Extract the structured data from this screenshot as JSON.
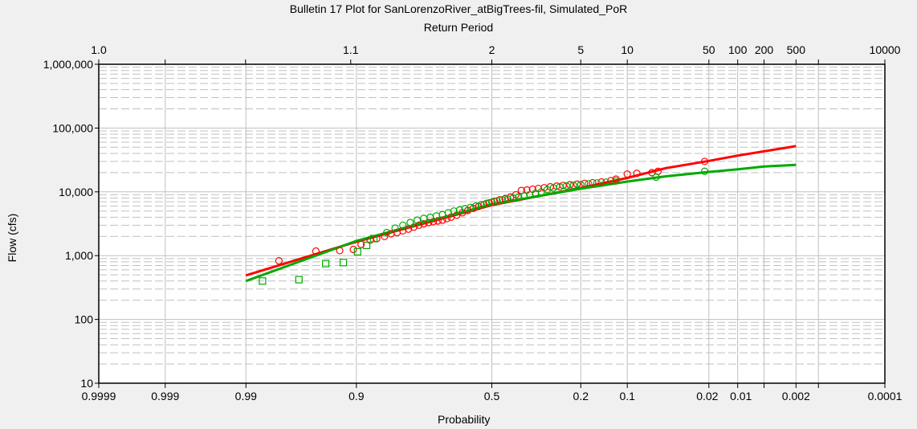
{
  "chart_data": {
    "type": "scatter",
    "title": "Bulletin 17 Plot for SanLorenzoRiver_atBigTrees-fil, Simulated_PoR",
    "top_axis_title": "Return Period",
    "xlabel": "Probability",
    "ylabel": "Flow (cfs)",
    "x_scale": "probability (normal)",
    "y_scale": "log",
    "ylim": [
      10,
      1000000
    ],
    "xlim": [
      0.9999,
      0.0001
    ],
    "y_ticks": [
      "1,000,000",
      "100,000",
      "10,000",
      "1,000",
      "100",
      "10"
    ],
    "x_ticks": [
      "0.9999",
      "0.999",
      "0.99",
      "0.9",
      "0.5",
      "0.2",
      "0.1",
      "0.02",
      "0.01",
      "0.002",
      "0.0001"
    ],
    "top_ticks": [
      "1.0",
      "1.1",
      "2",
      "5",
      "10",
      "50",
      "100",
      "200",
      "500",
      "10000"
    ],
    "grid": true,
    "series": [
      {
        "name": "Computed curve (red)",
        "color": "#ff0000",
        "kind": "line",
        "points": [
          [
            0.99,
            490
          ],
          [
            0.9,
            1650
          ],
          [
            0.5,
            6200
          ],
          [
            0.2,
            11500
          ],
          [
            0.1,
            16500
          ],
          [
            0.05,
            23500
          ],
          [
            0.02,
            30500
          ],
          [
            0.01,
            37000
          ],
          [
            0.002,
            52000
          ]
        ]
      },
      {
        "name": "Computed curve (green)",
        "color": "#00aa00",
        "kind": "line",
        "points": [
          [
            0.99,
            400
          ],
          [
            0.9,
            1700
          ],
          [
            0.5,
            6400
          ],
          [
            0.2,
            11200
          ],
          [
            0.1,
            14500
          ],
          [
            0.05,
            17500
          ],
          [
            0.02,
            20500
          ],
          [
            0.01,
            22500
          ],
          [
            0.005,
            25000
          ],
          [
            0.002,
            26500
          ]
        ]
      },
      {
        "name": "Observed (red circles)",
        "color": "#ff0000",
        "kind": "circle",
        "points": [
          [
            0.978,
            830
          ],
          [
            0.952,
            1180
          ],
          [
            0.925,
            1200
          ],
          [
            0.905,
            1250
          ],
          [
            0.892,
            1500
          ],
          [
            0.875,
            1750
          ],
          [
            0.862,
            1850
          ],
          [
            0.845,
            2000
          ],
          [
            0.83,
            2200
          ],
          [
            0.815,
            2300
          ],
          [
            0.8,
            2450
          ],
          [
            0.785,
            2600
          ],
          [
            0.77,
            2800
          ],
          [
            0.755,
            3000
          ],
          [
            0.74,
            3150
          ],
          [
            0.725,
            3300
          ],
          [
            0.71,
            3400
          ],
          [
            0.695,
            3500
          ],
          [
            0.68,
            3600
          ],
          [
            0.665,
            3800
          ],
          [
            0.65,
            4000
          ],
          [
            0.63,
            4300
          ],
          [
            0.61,
            4700
          ],
          [
            0.59,
            5100
          ],
          [
            0.57,
            5500
          ],
          [
            0.55,
            5900
          ],
          [
            0.53,
            6300
          ],
          [
            0.51,
            6700
          ],
          [
            0.49,
            7100
          ],
          [
            0.47,
            7500
          ],
          [
            0.45,
            7800
          ],
          [
            0.43,
            8300
          ],
          [
            0.41,
            9000
          ],
          [
            0.39,
            10500
          ],
          [
            0.37,
            10700
          ],
          [
            0.35,
            11000
          ],
          [
            0.33,
            11300
          ],
          [
            0.31,
            11600
          ],
          [
            0.29,
            12000
          ],
          [
            0.27,
            12300
          ],
          [
            0.25,
            12600
          ],
          [
            0.23,
            12900
          ],
          [
            0.21,
            13200
          ],
          [
            0.19,
            13600
          ],
          [
            0.17,
            13900
          ],
          [
            0.15,
            14300
          ],
          [
            0.13,
            15000
          ],
          [
            0.12,
            15800
          ],
          [
            0.1,
            19000
          ],
          [
            0.085,
            19500
          ],
          [
            0.065,
            20000
          ],
          [
            0.058,
            21000
          ],
          [
            0.022,
            30000
          ]
        ]
      },
      {
        "name": "Observed (green circles / squares)",
        "color": "#00aa00",
        "kind": "circle",
        "points": [
          [
            0.985,
            400
          ],
          [
            0.966,
            420
          ],
          [
            0.942,
            750
          ],
          [
            0.92,
            780
          ],
          [
            0.898,
            1150
          ],
          [
            0.882,
            1450
          ],
          [
            0.868,
            1850
          ],
          [
            0.84,
            2300
          ],
          [
            0.82,
            2700
          ],
          [
            0.8,
            3000
          ],
          [
            0.78,
            3300
          ],
          [
            0.76,
            3600
          ],
          [
            0.74,
            3850
          ],
          [
            0.72,
            4000
          ],
          [
            0.7,
            4200
          ],
          [
            0.68,
            4400
          ],
          [
            0.66,
            4700
          ],
          [
            0.64,
            5000
          ],
          [
            0.62,
            5200
          ],
          [
            0.6,
            5450
          ],
          [
            0.58,
            5700
          ],
          [
            0.56,
            6000
          ],
          [
            0.54,
            6300
          ],
          [
            0.52,
            6600
          ],
          [
            0.5,
            6900
          ],
          [
            0.48,
            7200
          ],
          [
            0.46,
            7500
          ],
          [
            0.44,
            7700
          ],
          [
            0.42,
            8000
          ],
          [
            0.4,
            8300
          ],
          [
            0.38,
            8600
          ],
          [
            0.36,
            9000
          ],
          [
            0.34,
            9500
          ],
          [
            0.32,
            10000
          ],
          [
            0.3,
            10800
          ],
          [
            0.28,
            11500
          ],
          [
            0.26,
            12000
          ],
          [
            0.24,
            12400
          ],
          [
            0.22,
            12700
          ],
          [
            0.2,
            13000
          ],
          [
            0.18,
            13400
          ],
          [
            0.16,
            13800
          ],
          [
            0.14,
            14200
          ],
          [
            0.12,
            14800
          ],
          [
            0.06,
            17000
          ],
          [
            0.022,
            21000
          ]
        ]
      }
    ]
  },
  "labels": {
    "title": "Bulletin 17 Plot for SanLorenzoRiver_atBigTrees-fil, Simulated_PoR",
    "top_axis_title": "Return Period",
    "xlabel": "Probability",
    "ylabel": "Flow (cfs)"
  }
}
